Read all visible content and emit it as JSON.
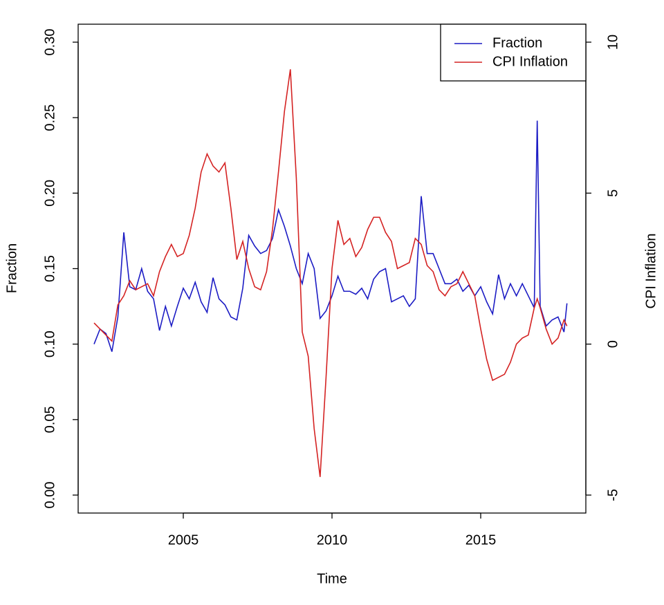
{
  "chart_data": {
    "type": "line",
    "xlabel": "Time",
    "ylabel": "Fraction",
    "y2label": "CPI Inflation",
    "x": [
      2002.0,
      2002.2,
      2002.4,
      2002.6,
      2002.8,
      2003.0,
      2003.2,
      2003.4,
      2003.6,
      2003.8,
      2004.0,
      2004.2,
      2004.4,
      2004.6,
      2004.8,
      2005.0,
      2005.2,
      2005.4,
      2005.6,
      2005.8,
      2006.0,
      2006.2,
      2006.4,
      2006.6,
      2006.8,
      2007.0,
      2007.2,
      2007.4,
      2007.6,
      2007.8,
      2008.0,
      2008.2,
      2008.4,
      2008.6,
      2008.8,
      2009.0,
      2009.2,
      2009.4,
      2009.6,
      2009.8,
      2010.0,
      2010.2,
      2010.4,
      2010.6,
      2010.8,
      2011.0,
      2011.2,
      2011.4,
      2011.6,
      2011.8,
      2012.0,
      2012.2,
      2012.4,
      2012.6,
      2012.8,
      2013.0,
      2013.2,
      2013.4,
      2013.6,
      2013.8,
      2014.0,
      2014.2,
      2014.4,
      2014.6,
      2014.8,
      2015.0,
      2015.2,
      2015.4,
      2015.6,
      2015.8,
      2016.0,
      2016.2,
      2016.4,
      2016.6,
      2016.8,
      2016.9,
      2017.0,
      2017.2,
      2017.4,
      2017.6,
      2017.8,
      2017.9
    ],
    "series": [
      {
        "name": "Fraction",
        "color": "#1c1cc4",
        "axis": "y",
        "values": [
          0.1,
          0.11,
          0.107,
          0.095,
          0.118,
          0.174,
          0.138,
          0.136,
          0.15,
          0.135,
          0.13,
          0.109,
          0.125,
          0.112,
          0.125,
          0.137,
          0.13,
          0.141,
          0.128,
          0.121,
          0.144,
          0.13,
          0.126,
          0.118,
          0.116,
          0.137,
          0.172,
          0.165,
          0.16,
          0.162,
          0.17,
          0.189,
          0.178,
          0.165,
          0.15,
          0.14,
          0.16,
          0.15,
          0.117,
          0.122,
          0.132,
          0.145,
          0.135,
          0.135,
          0.133,
          0.137,
          0.13,
          0.143,
          0.148,
          0.15,
          0.128,
          0.13,
          0.132,
          0.125,
          0.13,
          0.198,
          0.16,
          0.16,
          0.15,
          0.14,
          0.14,
          0.143,
          0.135,
          0.139,
          0.132,
          0.138,
          0.128,
          0.12,
          0.146,
          0.13,
          0.14,
          0.132,
          0.14,
          0.132,
          0.124,
          0.248,
          0.125,
          0.112,
          0.116,
          0.118,
          0.108,
          0.127
        ]
      },
      {
        "name": "CPI Inflation",
        "color": "#d42222",
        "axis": "y2",
        "values": [
          0.7,
          0.5,
          0.3,
          0.1,
          1.3,
          1.6,
          2.1,
          1.8,
          1.9,
          2.0,
          1.6,
          2.4,
          2.9,
          3.3,
          2.9,
          3.0,
          3.6,
          4.5,
          5.7,
          6.3,
          5.9,
          5.7,
          6.0,
          4.5,
          2.8,
          3.4,
          2.5,
          1.9,
          1.8,
          2.4,
          3.8,
          5.7,
          7.7,
          9.1,
          5.5,
          0.4,
          -0.4,
          -2.8,
          -4.4,
          -1.1,
          2.5,
          4.1,
          3.3,
          3.5,
          2.9,
          3.2,
          3.8,
          4.2,
          4.2,
          3.7,
          3.4,
          2.5,
          2.6,
          2.7,
          3.5,
          3.3,
          2.6,
          2.4,
          1.8,
          1.6,
          1.9,
          2.0,
          2.4,
          2.0,
          1.6,
          0.5,
          -0.5,
          -1.2,
          -1.1,
          -1.0,
          -0.6,
          0.0,
          0.2,
          0.3,
          1.2,
          1.5,
          1.2,
          0.5,
          0.0,
          0.2,
          0.8,
          0.6
        ]
      }
    ],
    "xlim": [
      2001.465,
      2018.535
    ],
    "xticks": [
      2005,
      2010,
      2015
    ],
    "ylim": [
      -0.0119,
      0.3119
    ],
    "yticks": [
      {
        "value": 0,
        "label": "0.00"
      },
      {
        "value": 0.05,
        "label": "0.05"
      },
      {
        "value": 0.1,
        "label": "0.10"
      },
      {
        "value": 0.15,
        "label": "0.15"
      },
      {
        "value": 0.2,
        "label": "0.20"
      },
      {
        "value": 0.25,
        "label": "0.25"
      },
      {
        "value": 0.3,
        "label": "0.30"
      }
    ],
    "y2lim": [
      -5.595,
      10.595
    ],
    "y2ticks": [
      -5,
      0,
      5,
      10
    ],
    "legend": "top-right"
  }
}
